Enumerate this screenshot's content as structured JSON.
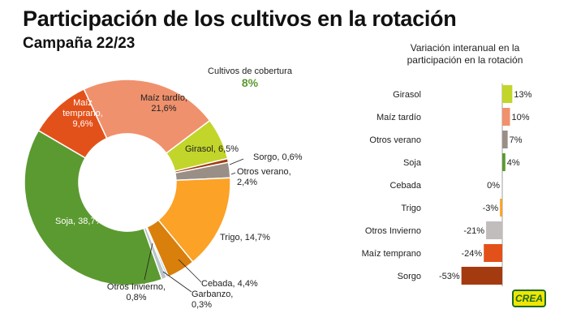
{
  "chart_data": [
    {
      "type": "pie",
      "title": "Participación de los cultivos en la rotación",
      "subtitle": "Campaña 22/23",
      "slices": [
        {
          "label": "Maíz tardío",
          "value_label": "21,6%",
          "value": 21.6,
          "color": "#f0916d"
        },
        {
          "label": "Girasol",
          "value_label": "6,5%",
          "value": 6.5,
          "color": "#c2d52a"
        },
        {
          "label": "Sorgo",
          "value_label": "0,6%",
          "value": 0.6,
          "color": "#a33a10"
        },
        {
          "label": "Otros verano",
          "value_label": "2,4%",
          "value": 2.4,
          "color": "#9a8f87"
        },
        {
          "label": "Trigo",
          "value_label": "14,7%",
          "value": 14.7,
          "color": "#fba227"
        },
        {
          "label": "Cebada",
          "value_label": "4,4%",
          "value": 4.4,
          "color": "#d97f0b"
        },
        {
          "label": "Garbanzo",
          "value_label": "0,3%",
          "value": 0.3,
          "color": "#7fb7d6"
        },
        {
          "label": "Otros Invierno",
          "value_label": "0,8%",
          "value": 0.8,
          "color": "#b9c4c8"
        },
        {
          "label": "Soja",
          "value_label": "38,7%",
          "value": 38.7,
          "color": "#5b9a30"
        },
        {
          "label": "Maíz temprano",
          "value_label": "9,6%",
          "value": 9.6,
          "color": "#e3511a"
        }
      ],
      "annotation": {
        "label": "Cultivos de cobertura",
        "value_label": "8%",
        "value": 8,
        "color": "#5b9a30"
      }
    },
    {
      "type": "bar",
      "orientation": "horizontal",
      "title": "Variación interanual en la participación en la rotación",
      "categories": [
        "Girasol",
        "Maíz tardío",
        "Otros verano",
        "Soja",
        "Cebada",
        "Trigo",
        "Otros Invierno",
        "Maíz temprano",
        "Sorgo"
      ],
      "values": [
        13,
        10,
        7,
        4,
        0,
        -3,
        -21,
        -24,
        -53
      ],
      "value_labels": [
        "13%",
        "10%",
        "7%",
        "4%",
        "0%",
        "-3%",
        "-21%",
        "-24%",
        "-53%"
      ],
      "colors": [
        "#c2d52a",
        "#f0916d",
        "#9a8f87",
        "#5b9a30",
        "#d97f0b",
        "#fba227",
        "#c2bdbd",
        "#e3511a",
        "#a33a10"
      ]
    }
  ],
  "logo": {
    "text": "CREA"
  }
}
